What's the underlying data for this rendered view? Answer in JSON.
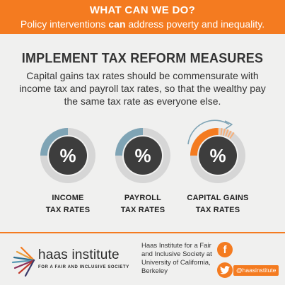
{
  "banner": {
    "title": "WHAT CAN WE DO?",
    "subtitle_before": "Policy interventions ",
    "subtitle_bold": "can",
    "subtitle_after": " address poverty and inequality."
  },
  "heading": "IMPLEMENT TAX REFORM MEASURES",
  "body": "Capital gains tax rates should be commensurate with income tax and payroll tax rates, so that the wealthy pay the same tax rate as everyone else.",
  "circles": [
    {
      "symbol": "%",
      "label_line1": "INCOME",
      "label_line2": "TAX RATES"
    },
    {
      "symbol": "%",
      "label_line1": "PAYROLL",
      "label_line2": "TAX RATES"
    },
    {
      "symbol": "%",
      "label_line1": "CAPITAL GAINS",
      "label_line2": "TAX RATES"
    }
  ],
  "footer": {
    "logo_name": "haas institute",
    "logo_tagline": "FOR A FAIR AND INCLUSIVE SOCIETY",
    "address_line1": "Haas Institute for a Fair",
    "address_line2": "and Inclusive Society at",
    "address_line3": "University of California,",
    "address_line4": "Berkeley",
    "facebook_glyph": "f",
    "twitter_handle": "@haasinstitute"
  },
  "colors": {
    "accent": "#f47b20",
    "ring_track": "#d6d6d6",
    "ring_fill_blue": "#7fa4b5",
    "center_dark": "#3d3d3d"
  },
  "icons": [
    "facebook-icon",
    "twitter-icon",
    "haas-logo-icon",
    "arrow-icon"
  ]
}
